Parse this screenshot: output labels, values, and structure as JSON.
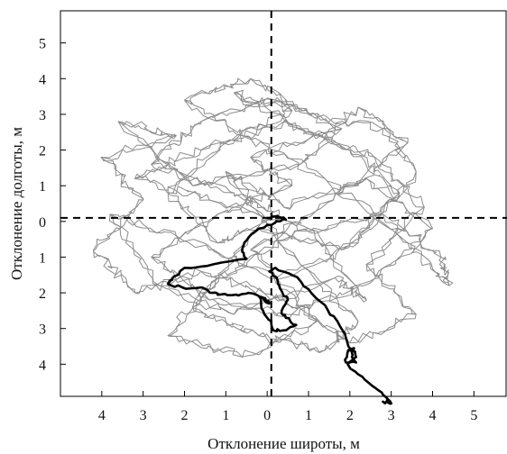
{
  "chart_data": {
    "type": "line",
    "xlabel": "Отклонение широты, м",
    "ylabel": "Отклонение долготы, м",
    "xlim": [
      -5,
      5.8
    ],
    "ylim": [
      -4.9,
      5.9
    ],
    "x_ticks": [
      {
        "value": -4,
        "label": "4"
      },
      {
        "value": -3,
        "label": "3"
      },
      {
        "value": -2,
        "label": "2"
      },
      {
        "value": -1,
        "label": "1"
      },
      {
        "value": 0,
        "label": "0"
      },
      {
        "value": 1,
        "label": "1"
      },
      {
        "value": 2,
        "label": "2"
      },
      {
        "value": 3,
        "label": "3"
      },
      {
        "value": 4,
        "label": "4"
      },
      {
        "value": 5,
        "label": "5"
      }
    ],
    "y_ticks": [
      {
        "value": -4,
        "label": "4"
      },
      {
        "value": -3,
        "label": "3"
      },
      {
        "value": -2,
        "label": "2"
      },
      {
        "value": -1,
        "label": "1"
      },
      {
        "value": 0,
        "label": "0"
      },
      {
        "value": 1,
        "label": "1"
      },
      {
        "value": 2,
        "label": "2"
      },
      {
        "value": 3,
        "label": "3"
      },
      {
        "value": 4,
        "label": "4"
      },
      {
        "value": 5,
        "label": "5"
      }
    ],
    "reference_lines": {
      "x": 0.1,
      "y": 0.1,
      "style": "dashed",
      "color": "#000000"
    },
    "series": [
      {
        "color": "#8c8c8c",
        "style": "noisy random-walk cloud",
        "points": [
          [
            0.1,
            0.1
          ],
          [
            -1.2,
            -0.6
          ],
          [
            -2.4,
            0.8
          ],
          [
            -1.0,
            2.2
          ],
          [
            0.6,
            3.1
          ],
          [
            -0.8,
            3.6
          ],
          [
            1.2,
            2.4
          ],
          [
            2.6,
            1.8
          ],
          [
            3.8,
            0.4
          ],
          [
            2.4,
            -1.2
          ],
          [
            3.6,
            -2.6
          ],
          [
            2.0,
            -3.4
          ],
          [
            0.4,
            -2.2
          ],
          [
            -1.6,
            -1.4
          ],
          [
            -3.2,
            -2.0
          ],
          [
            -4.2,
            -0.8
          ],
          [
            -3.0,
            0.6
          ],
          [
            -4.0,
            1.8
          ],
          [
            -2.2,
            2.4
          ],
          [
            -3.6,
            2.8
          ],
          [
            -1.8,
            1.0
          ],
          [
            0.8,
            1.6
          ],
          [
            2.2,
            3.2
          ],
          [
            3.4,
            2.2
          ],
          [
            1.6,
            0.6
          ],
          [
            -0.4,
            -0.8
          ],
          [
            1.2,
            -2.8
          ],
          [
            -0.6,
            -3.8
          ],
          [
            -2.4,
            -3.2
          ],
          [
            -1.2,
            -1.6
          ],
          [
            0.6,
            -0.4
          ],
          [
            2.8,
            0.2
          ],
          [
            4.2,
            -1.0
          ],
          [
            4.4,
            -1.8
          ],
          [
            3.4,
            -0.6
          ],
          [
            1.4,
            1.2
          ],
          [
            -0.6,
            2.4
          ],
          [
            -2.0,
            3.4
          ],
          [
            -0.4,
            4.0
          ],
          [
            1.0,
            3.0
          ],
          [
            2.8,
            2.6
          ],
          [
            3.6,
            1.4
          ],
          [
            2.2,
            -0.6
          ],
          [
            0.2,
            -1.6
          ],
          [
            -2.2,
            -0.4
          ],
          [
            -3.8,
            0.2
          ],
          [
            -2.6,
            -1.8
          ],
          [
            -0.8,
            -2.6
          ],
          [
            1.6,
            -1.6
          ],
          [
            2.4,
            -2.2
          ],
          [
            1.0,
            -0.2
          ],
          [
            -1.4,
            0.6
          ],
          [
            -3.2,
            1.2
          ],
          [
            -1.6,
            2.0
          ],
          [
            0.4,
            2.8
          ],
          [
            2.0,
            2.0
          ],
          [
            3.2,
            0.8
          ],
          [
            1.8,
            -0.8
          ],
          [
            -0.2,
            -0.2
          ],
          [
            -1.8,
            -2.4
          ],
          [
            -0.2,
            -3.2
          ],
          [
            1.4,
            -3.6
          ],
          [
            2.2,
            -2.8
          ],
          [
            0.8,
            -1.2
          ],
          [
            -1.0,
            1.4
          ],
          [
            0.4,
            0.4
          ],
          [
            2.4,
            1.2
          ],
          [
            4.0,
            -0.2
          ],
          [
            2.6,
            -1.6
          ],
          [
            0.6,
            -2.6
          ],
          [
            -1.4,
            -2.2
          ],
          [
            -2.8,
            -1.0
          ],
          [
            -1.2,
            0.2
          ],
          [
            0.6,
            1.0
          ],
          [
            -0.4,
            1.8
          ],
          [
            1.8,
            2.6
          ],
          [
            0.2,
            3.4
          ],
          [
            -1.6,
            2.8
          ],
          [
            -2.8,
            1.6
          ],
          [
            -0.8,
            0.8
          ],
          [
            0.3,
            0.2
          ]
        ]
      },
      {
        "color": "#000000",
        "style": "thick trajectory",
        "points": [
          [
            0.0,
            0.1
          ],
          [
            0.25,
            0.15
          ],
          [
            0.45,
            0.05
          ],
          [
            0.3,
            0.0
          ],
          [
            0.1,
            -0.1
          ],
          [
            -0.2,
            -0.2
          ],
          [
            -0.45,
            -0.45
          ],
          [
            -0.6,
            -0.75
          ],
          [
            -0.5,
            -1.05
          ],
          [
            -1.3,
            -1.2
          ],
          [
            -2.0,
            -1.3
          ],
          [
            -2.3,
            -1.6
          ],
          [
            -2.4,
            -1.75
          ],
          [
            -2.05,
            -1.85
          ],
          [
            -1.6,
            -1.85
          ],
          [
            -1.3,
            -2.0
          ],
          [
            -1.15,
            -2.05
          ],
          [
            -0.75,
            -2.05
          ],
          [
            -0.45,
            -2.0
          ],
          [
            -0.05,
            -2.15
          ],
          [
            0.05,
            -2.3
          ],
          [
            -0.2,
            -2.1
          ],
          [
            -0.1,
            -2.5
          ],
          [
            0.1,
            -2.8
          ],
          [
            0.15,
            -3.05
          ],
          [
            0.4,
            -3.05
          ],
          [
            0.7,
            -2.9
          ],
          [
            0.45,
            -2.7
          ],
          [
            0.35,
            -2.5
          ],
          [
            0.5,
            -2.2
          ],
          [
            0.35,
            -1.95
          ],
          [
            0.25,
            -1.65
          ],
          [
            0.05,
            -1.4
          ],
          [
            0.2,
            -1.3
          ],
          [
            0.6,
            -1.5
          ],
          [
            1.0,
            -1.9
          ],
          [
            1.4,
            -2.35
          ],
          [
            1.7,
            -2.8
          ],
          [
            1.9,
            -3.25
          ],
          [
            2.0,
            -3.55
          ],
          [
            2.05,
            -3.8
          ],
          [
            2.15,
            -3.95
          ],
          [
            1.9,
            -3.95
          ],
          [
            1.95,
            -3.65
          ],
          [
            2.1,
            -3.55
          ],
          [
            2.15,
            -3.8
          ],
          [
            1.95,
            -4.0
          ],
          [
            2.3,
            -4.35
          ],
          [
            2.6,
            -4.65
          ],
          [
            2.9,
            -4.95
          ],
          [
            3.0,
            -5.1
          ],
          [
            2.8,
            -5.05
          ]
        ]
      }
    ]
  }
}
